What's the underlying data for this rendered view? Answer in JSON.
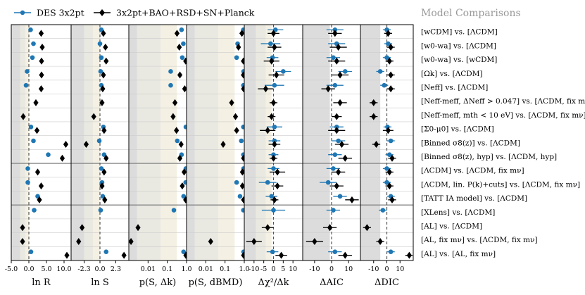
{
  "chart_data": {
    "type": "scatter",
    "title": "Model Comparisons",
    "legend": {
      "placement": "top-left",
      "entries": [
        {
          "name": "DES 3x2pt",
          "color": "#1f77b4",
          "marker": "circle"
        },
        {
          "name": "3x2pt+BAO+RSD+SN+Planck",
          "color": "#000000",
          "marker": "diamond"
        }
      ]
    },
    "separator_after_rows": [
      10,
      13
    ],
    "rows": [
      "[wCDM] vs. [ΛCDM]",
      "[w0-wa] vs. [ΛCDM]",
      "[w0-wa] vs. [wCDM]",
      "[Ωk] vs. [ΛCDM]",
      "[Neff] vs. [ΛCDM]",
      "[Neff-meff, ΔNeff > 0.047] vs. [ΛCDM, fix mν]",
      "[Neff-meff, mth < 10 eV] vs. [ΛCDM, fix mν]",
      "[Σ0-μ0] vs. [ΛCDM]",
      "[Binned σ8(z)] vs. [ΛCDM]",
      "[Binned σ8(z), hyp] vs. [ΛCDM, hyp]",
      "[ΛCDM] vs. [ΛCDM, fix mν]",
      "[ΛCDM, lin. P(k)+cuts] vs. [ΛCDM, fix mν]",
      "[TATT IA model] vs. [ΛCDM]",
      "[XLens] vs. [ΛCDM]",
      "[AL] vs. [ΛCDM]",
      "[AL, fix mν] vs. [ΛCDM, fix mν]",
      "[AL] vs. [AL, fix mν]"
    ],
    "panels": [
      {
        "key": "lnR",
        "xlabel": "ln R",
        "scale": "linear",
        "xlim": [
          -5.0,
          12.0
        ],
        "ticks": [
          -5.0,
          0.0,
          5.0,
          10.0
        ],
        "tick_labels": [
          "-5.0",
          "0.0",
          "5.0",
          "10.0"
        ],
        "ref_line": 0,
        "bands": [
          {
            "x": [
              -5,
              -2.5
            ],
            "color": "#dcdcdc"
          },
          {
            "x": [
              -2.5,
              -1.0
            ],
            "color": "#e9e9e1"
          },
          {
            "x": [
              -1.0,
              0.0
            ],
            "color": "#f4f0e3"
          }
        ],
        "des": [
          0.5,
          1.3,
          1.0,
          -0.5,
          -0.8,
          null,
          null,
          0.6,
          1.3,
          5.5,
          -0.3,
          -0.3,
          2.5,
          1.5,
          null,
          null,
          0.6
        ],
        "combined": [
          3.5,
          3.8,
          3.6,
          3.6,
          3.5,
          2.0,
          -1.6,
          2.3,
          10.5,
          9.5,
          2.5,
          3.5,
          3.0,
          null,
          -1.8,
          -1.8,
          10.8
        ]
      },
      {
        "key": "lnS",
        "xlabel": "ln S",
        "scale": "linear",
        "xlim": [
          -4.2,
          4.2
        ],
        "ticks": [
          -2.3,
          0.0,
          2.3
        ],
        "tick_labels": [
          "-2.3",
          "0.0",
          "2.3"
        ],
        "ref_line": 0,
        "bands": [
          {
            "x": [
              -4.2,
              -2.3
            ],
            "color": "#dcdcdc"
          },
          {
            "x": [
              -2.3,
              -1.0
            ],
            "color": "#e9e9e1"
          },
          {
            "x": [
              -1.0,
              0.0
            ],
            "color": "#f4f0e3"
          }
        ],
        "des": [
          0.2,
          0.0,
          0.2,
          0.1,
          0.2,
          null,
          null,
          0.5,
          -0.1,
          0.6,
          0.2,
          0.3,
          0.4,
          0.1,
          null,
          null,
          0.9
        ],
        "combined": [
          0.5,
          0.8,
          0.9,
          0.5,
          0.4,
          0.3,
          -0.9,
          0.6,
          -2.0,
          0.9,
          0.6,
          0.3,
          0.7,
          null,
          -2.6,
          -3.1,
          3.5
        ]
      },
      {
        "key": "pS_dk",
        "xlabel": "p(S, Δk)",
        "scale": "log",
        "xlim": [
          0.001,
          1.0
        ],
        "ticks": [
          0.01,
          0.1,
          1.0
        ],
        "tick_labels": [
          "0.01",
          "0.1",
          "1.0"
        ],
        "ref_line": null,
        "bands": [
          {
            "x": [
              0.001,
              0.0027
            ],
            "color": "#dcdcdc"
          },
          {
            "x": [
              0.0027,
              0.0455
            ],
            "color": "#e9e9e1"
          },
          {
            "x": [
              0.0455,
              0.3173
            ],
            "color": "#f4f0e3"
          }
        ],
        "des": [
          0.55,
          0.68,
          0.6,
          0.15,
          0.15,
          null,
          null,
          0.95,
          0.33,
          0.55,
          0.95,
          0.9,
          0.7,
          0.22,
          null,
          null,
          0.7
        ],
        "combined": [
          0.32,
          0.42,
          0.9,
          0.45,
          0.8,
          0.25,
          0.2,
          0.3,
          0.52,
          0.45,
          0.75,
          0.6,
          0.9,
          null,
          0.003,
          0.0013,
          1.0
        ]
      },
      {
        "key": "pS_dbmd",
        "xlabel": "p(S, dBMD)",
        "scale": "log",
        "xlim": [
          0.001,
          1.0
        ],
        "ticks": [
          0.01,
          0.1,
          1.0
        ],
        "tick_labels": [
          "0.01",
          "0.1",
          "1.0"
        ],
        "ref_line": null,
        "bands": [
          {
            "x": [
              0.001,
              0.0027
            ],
            "color": "#dcdcdc"
          },
          {
            "x": [
              0.0027,
              0.0455
            ],
            "color": "#e9e9e1"
          },
          {
            "x": [
              0.0455,
              0.3173
            ],
            "color": "#f4f0e3"
          }
        ],
        "des": [
          0.9,
          0.45,
          0.4,
          0.95,
          0.9,
          null,
          null,
          0.9,
          0.7,
          0.9,
          0.95,
          0.4,
          0.6,
          0.9,
          null,
          null,
          0.95
        ],
        "combined": [
          0.75,
          0.5,
          0.9,
          0.9,
          0.95,
          0.22,
          0.35,
          0.4,
          0.08,
          0.95,
          0.8,
          0.8,
          0.95,
          null,
          null,
          0.018,
          1.0
        ]
      },
      {
        "key": "dchi2_dk",
        "xlabel": "Δχ²/Δk",
        "scale": "linear",
        "xlim": [
          -15,
          15
        ],
        "ticks": [
          -10,
          -5,
          0,
          5,
          10
        ],
        "tick_labels": [
          "-10",
          "-5",
          "0",
          "5",
          "10"
        ],
        "ref_line": 0,
        "bands": [
          {
            "x": [
              -15,
              -9
            ],
            "color": "#dcdcdc"
          },
          {
            "x": [
              -9,
              -4
            ],
            "color": "#e9e9e1"
          },
          {
            "x": [
              -4,
              -1
            ],
            "color": "#f4f0e3"
          }
        ],
        "des": [
          {
            "v": 1.0,
            "e": 4.0
          },
          {
            "v": -1.5,
            "e": 5.0
          },
          {
            "v": -0.5,
            "e": 3.0
          },
          {
            "v": 5.0,
            "e": 4.0
          },
          {
            "v": 0.5,
            "e": 5.0
          },
          null,
          null,
          {
            "v": 0.5,
            "e": 4.0
          },
          {
            "v": 0.5,
            "e": 3.0
          },
          {
            "v": 0.0,
            "e": 2.5
          },
          {
            "v": 0.0,
            "e": 3.0
          },
          {
            "v": -3.0,
            "e": 4.5
          },
          {
            "v": -1.0,
            "e": 3.0
          },
          {
            "v": 0.0,
            "e": 6.0
          },
          null,
          null,
          {
            "v": -0.5,
            "e": 3.0
          }
        ],
        "combined": [
          {
            "v": 0.0,
            "e": 3.0
          },
          {
            "v": 0.5,
            "e": 3.5
          },
          {
            "v": -1.0,
            "e": 4.0
          },
          {
            "v": 1.5,
            "e": 4.0
          },
          {
            "v": -4.0,
            "e": 4.0
          },
          {
            "v": 0.0,
            "e": 2.0
          },
          {
            "v": -1.0,
            "e": 2.0
          },
          {
            "v": -3.0,
            "e": 4.0
          },
          {
            "v": 0.5,
            "e": 3.0
          },
          {
            "v": 0.0,
            "e": 2.0
          },
          {
            "v": 2.0,
            "e": 4.0
          },
          {
            "v": 2.0,
            "e": 3.0
          },
          {
            "v": 0.5,
            "e": 2.0
          },
          null,
          {
            "v": -3.0,
            "e": 3.0
          },
          {
            "v": -10.0,
            "e": 4.0
          },
          {
            "v": 4.0,
            "e": 3.0
          }
        ]
      },
      {
        "key": "daic",
        "xlabel": "ΔAIC",
        "scale": "linear",
        "xlim": [
          -17,
          17
        ],
        "ticks": [
          -10,
          0,
          10
        ],
        "tick_labels": [
          "-10",
          "0",
          "10"
        ],
        "ref_line": 0,
        "bands": [
          {
            "x": [
              -17,
              -1
            ],
            "color": "#dcdcdc"
          }
        ],
        "des": [
          {
            "v": 2.0,
            "e": 5.0
          },
          {
            "v": 3.0,
            "e": 5.0
          },
          {
            "v": 1.0,
            "e": 4.0
          },
          {
            "v": 8.0,
            "e": 4.0
          },
          {
            "v": 2.0,
            "e": 5.0
          },
          null,
          null,
          {
            "v": 3.0,
            "e": 4.0
          },
          {
            "v": 4.0,
            "e": 4.0
          },
          {
            "v": 2.0,
            "e": 4.0
          },
          {
            "v": 1.0,
            "e": 4.0
          },
          {
            "v": -2.0,
            "e": 5.0
          },
          {
            "v": 5.0,
            "e": 4.0
          },
          {
            "v": 1.0,
            "e": 4.0
          },
          null,
          null,
          {
            "v": 2.0,
            "e": 4.0
          }
        ],
        "combined": [
          {
            "v": 2.0,
            "e": 4.0
          },
          {
            "v": 4.0,
            "e": 5.0
          },
          {
            "v": 3.0,
            "e": 5.0
          },
          {
            "v": 5.0,
            "e": 5.0
          },
          {
            "v": -2.0,
            "e": 4.0
          },
          {
            "v": 5.0,
            "e": 4.0
          },
          {
            "v": 3.0,
            "e": 3.0
          },
          {
            "v": 3.0,
            "e": 5.0
          },
          {
            "v": 6.0,
            "e": 4.0
          },
          {
            "v": 8.0,
            "e": 4.0
          },
          {
            "v": 4.0,
            "e": 4.0
          },
          {
            "v": 3.0,
            "e": 4.0
          },
          {
            "v": 12.0,
            "e": 4.0
          },
          null,
          {
            "v": -1.0,
            "e": 4.0
          },
          {
            "v": -10.0,
            "e": 5.0
          },
          {
            "v": 8.0,
            "e": 4.0
          }
        ]
      },
      {
        "key": "ddic",
        "xlabel": "ΔDIC",
        "scale": "linear",
        "xlim": [
          -20,
          20
        ],
        "ticks": [
          -10,
          0,
          10
        ],
        "tick_labels": [
          "-10",
          "0",
          "10"
        ],
        "ref_line": 0,
        "bands": [
          {
            "x": [
              -20,
              -5
            ],
            "color": "#dcdcdc"
          }
        ],
        "des": [
          {
            "v": 0.0,
            "e": 3.0
          },
          {
            "v": 1.0,
            "e": 3.0
          },
          {
            "v": 0.0,
            "e": 3.0
          },
          {
            "v": -5.0,
            "e": 3.0
          },
          {
            "v": -2.0,
            "e": 3.0
          },
          null,
          null,
          {
            "v": 0.5,
            "e": 3.0
          },
          {
            "v": 3.0,
            "e": 3.0
          },
          {
            "v": 2.0,
            "e": 3.0
          },
          {
            "v": 0.0,
            "e": 3.0
          },
          {
            "v": 0.0,
            "e": 3.0
          },
          {
            "v": 3.0,
            "e": 3.0
          },
          {
            "v": -3.0,
            "e": 3.0
          },
          null,
          null,
          {
            "v": 3.0,
            "e": 3.0
          }
        ],
        "combined": [
          {
            "v": 1.0,
            "e": 3.0
          },
          {
            "v": 3.0,
            "e": 3.0
          },
          {
            "v": 2.0,
            "e": 3.0
          },
          {
            "v": 3.0,
            "e": 3.0
          },
          {
            "v": 3.0,
            "e": 3.0
          },
          {
            "v": -10.0,
            "e": 3.0
          },
          {
            "v": -10.0,
            "e": 3.0
          },
          {
            "v": 1.0,
            "e": 4.0
          },
          {
            "v": -8.0,
            "e": 3.0
          },
          {
            "v": 4.0,
            "e": 3.0
          },
          {
            "v": 2.0,
            "e": 3.0
          },
          {
            "v": 2.0,
            "e": 3.0
          },
          {
            "v": 4.0,
            "e": 3.0
          },
          null,
          {
            "v": -15.0,
            "e": 3.0
          },
          {
            "v": -5.0,
            "e": 3.0
          },
          {
            "v": 17.0,
            "e": 3.0
          }
        ]
      }
    ]
  },
  "colors": {
    "des": "#1f77b4",
    "combined": "#000000",
    "ref_line": "#555555",
    "grid": "#cccccc",
    "separator": "#888888",
    "title": "#999999"
  }
}
